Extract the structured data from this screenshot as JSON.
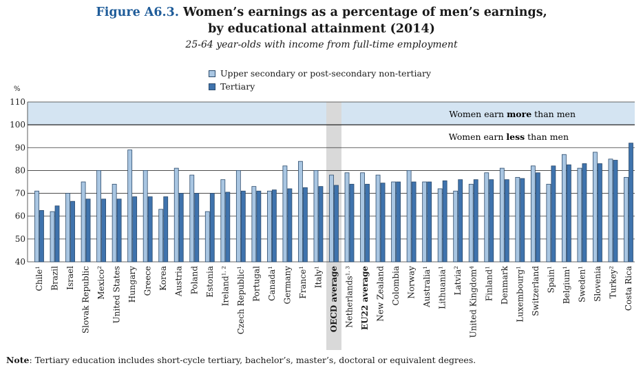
{
  "header": {
    "figure_label": "Figure A6.3.",
    "title_line1": "Women’s earnings as a percentage of men’s earnings,",
    "title_line2": "by educational attainment (2014)",
    "subtitle": "25-64 year-olds with income from full-time employment"
  },
  "legend": {
    "upper": "Upper secondary or post-secondary non-tertiary",
    "tertiary": "Tertiary"
  },
  "unit_label": "%",
  "annotations": {
    "more_prefix": "Women earn ",
    "more_bold": "more",
    "more_suffix": " than men",
    "less_prefix": "Women earn ",
    "less_bold": "less",
    "less_suffix": " than men"
  },
  "note": {
    "label": "Note",
    "text": ": Tertiary education includes short-cycle tertiary, bachelor’s, master’s, doctoral or equivalent degrees."
  },
  "colors": {
    "upper": "#a9c6e2",
    "tertiary": "#3f73ad",
    "bar_border": "#2b4a6b",
    "highlight_band": "#d4e4f2",
    "average_column": "#d9d9d9",
    "figure_label": "#1f5c99"
  },
  "chart_data": {
    "type": "bar",
    "ylim": [
      40,
      110
    ],
    "yticks": [
      40,
      50,
      60,
      70,
      80,
      90,
      100,
      110
    ],
    "grid": true,
    "legend_position": "top",
    "highlighted_categories": [
      "OECD average",
      "EU22 average"
    ],
    "shaded_column_category": "OECD average",
    "categories": [
      {
        "label": "Chile",
        "sup": "1"
      },
      {
        "label": "Brazil",
        "sup": ""
      },
      {
        "label": "Israel",
        "sup": ""
      },
      {
        "label": "Slovak Republic",
        "sup": ""
      },
      {
        "label": "Mexico",
        "sup": "2"
      },
      {
        "label": "United States",
        "sup": ""
      },
      {
        "label": "Hungary",
        "sup": ""
      },
      {
        "label": "Greece",
        "sup": ""
      },
      {
        "label": "Korea",
        "sup": ""
      },
      {
        "label": "Austria",
        "sup": ""
      },
      {
        "label": "Poland",
        "sup": ""
      },
      {
        "label": "Estonia",
        "sup": ""
      },
      {
        "label": "Ireland",
        "sup": "1, 2"
      },
      {
        "label": "Czech Republic",
        "sup": "1"
      },
      {
        "label": "Portugal",
        "sup": ""
      },
      {
        "label": "Canada",
        "sup": "1"
      },
      {
        "label": "Germany",
        "sup": ""
      },
      {
        "label": "France",
        "sup": "1"
      },
      {
        "label": "Italy",
        "sup": "1"
      },
      {
        "label": "OECD average",
        "sup": ""
      },
      {
        "label": "Netherlands",
        "sup": "1, 3"
      },
      {
        "label": "EU22 average",
        "sup": ""
      },
      {
        "label": "New Zealand",
        "sup": ""
      },
      {
        "label": "Colombia",
        "sup": ""
      },
      {
        "label": "Norway",
        "sup": ""
      },
      {
        "label": "Australia",
        "sup": "1"
      },
      {
        "label": "Lithuania",
        "sup": "1"
      },
      {
        "label": "Latvia",
        "sup": "2"
      },
      {
        "label": "United Kingdom",
        "sup": "4"
      },
      {
        "label": "Finland",
        "sup": "1"
      },
      {
        "label": "Denmark",
        "sup": ""
      },
      {
        "label": "Luxembourg",
        "sup": "1"
      },
      {
        "label": "Switzerland",
        "sup": ""
      },
      {
        "label": "Spain",
        "sup": "1"
      },
      {
        "label": "Belgium",
        "sup": "1"
      },
      {
        "label": "Sweden",
        "sup": "1"
      },
      {
        "label": "Slovenia",
        "sup": ""
      },
      {
        "label": "Turkey",
        "sup": "2"
      },
      {
        "label": "Costa Rica",
        "sup": ""
      }
    ],
    "series": [
      {
        "name": "Upper secondary or post-secondary non-tertiary",
        "values": [
          71,
          62,
          70,
          75,
          80,
          74,
          89,
          80,
          63,
          81,
          78,
          62,
          76,
          80,
          73,
          71,
          82,
          84,
          80,
          78,
          79,
          79,
          78,
          75,
          80,
          75,
          72,
          71,
          74,
          79,
          81,
          77,
          82,
          74,
          87,
          81,
          88,
          85,
          77
        ]
      },
      {
        "name": "Tertiary",
        "values": [
          62.5,
          64.5,
          66.5,
          67.5,
          67.5,
          67.5,
          68.5,
          68.5,
          68.5,
          70,
          70,
          70,
          70.5,
          71,
          71,
          71.5,
          72,
          72.5,
          73,
          73.5,
          74,
          74,
          74.5,
          75,
          75,
          75,
          75.5,
          76,
          76,
          76,
          76,
          76.5,
          79,
          82,
          82.5,
          83,
          83,
          84.5,
          92
        ]
      }
    ]
  }
}
